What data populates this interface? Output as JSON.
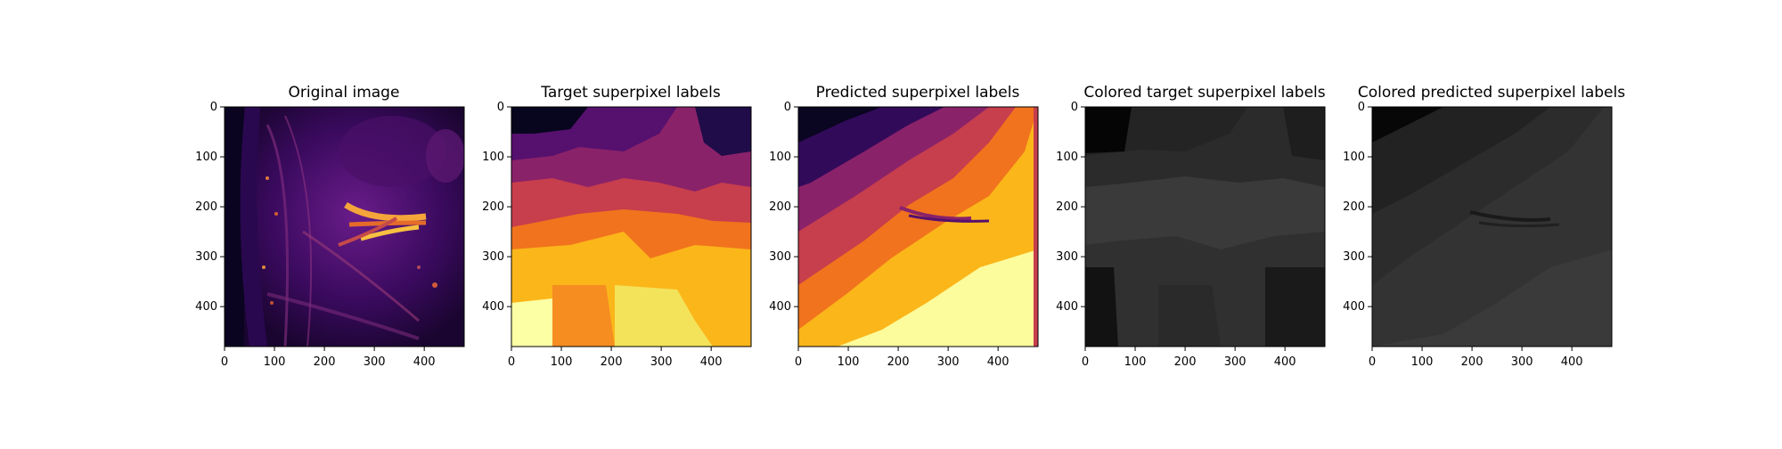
{
  "chart_data": [
    {
      "type": "heatmap",
      "title": "Original image",
      "xlim": [
        0,
        480
      ],
      "ylim": [
        480,
        0
      ],
      "xticks": [
        0,
        100,
        200,
        300,
        400
      ],
      "yticks": [
        0,
        100,
        200,
        300,
        400
      ],
      "colormap": "inferno"
    },
    {
      "type": "heatmap",
      "title": "Target superpixel labels",
      "xlim": [
        0,
        480
      ],
      "ylim": [
        480,
        0
      ],
      "xticks": [
        0,
        100,
        200,
        300,
        400
      ],
      "yticks": [
        0,
        100,
        200,
        300,
        400
      ],
      "colormap": "inferno"
    },
    {
      "type": "heatmap",
      "title": "Predicted superpixel labels",
      "xlim": [
        0,
        480
      ],
      "ylim": [
        480,
        0
      ],
      "xticks": [
        0,
        100,
        200,
        300,
        400
      ],
      "yticks": [
        0,
        100,
        200,
        300,
        400
      ],
      "colormap": "inferno"
    },
    {
      "type": "heatmap",
      "title": "Colored target superpixel labels",
      "xlim": [
        0,
        480
      ],
      "ylim": [
        480,
        0
      ],
      "xticks": [
        0,
        100,
        200,
        300,
        400
      ],
      "yticks": [
        0,
        100,
        200,
        300,
        400
      ],
      "colormap": "gray"
    },
    {
      "type": "heatmap",
      "title": "Colored predicted superpixel labels",
      "xlim": [
        0,
        480
      ],
      "ylim": [
        480,
        0
      ],
      "xticks": [
        0,
        100,
        200,
        300,
        400
      ],
      "yticks": [
        0,
        100,
        200,
        300,
        400
      ],
      "colormap": "gray"
    }
  ]
}
